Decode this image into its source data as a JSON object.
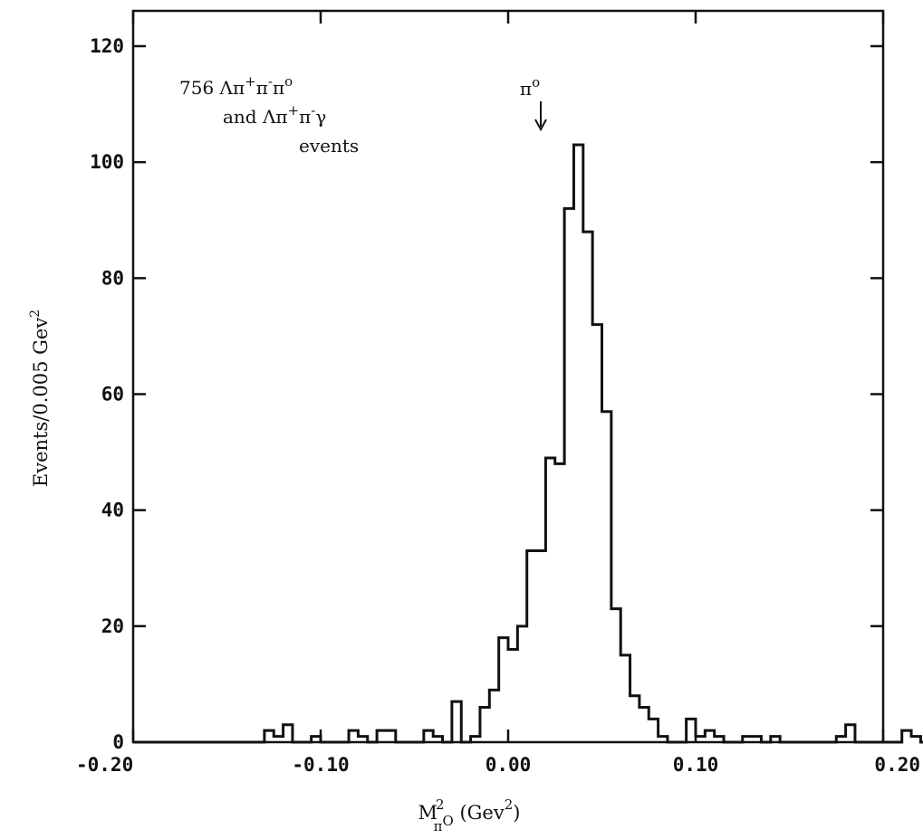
{
  "chart_data": {
    "type": "histogram",
    "xlabel": {
      "base": "M",
      "sup": "2",
      "sub": "π",
      "subsup": "O",
      "rest": " (Gev",
      "rest_sup": "2",
      "close": ")"
    },
    "ylabel": {
      "text": "Events/0.005 Gev",
      "sup": "2"
    },
    "xlim": [
      -0.2,
      0.2
    ],
    "ylim": [
      0,
      125
    ],
    "bin_width": 0.005,
    "x_ticks": [
      -0.2,
      -0.1,
      0.0,
      0.1,
      0.2
    ],
    "x_tick_labels": [
      "-0.20",
      "-0.10",
      "0.00",
      "0.10",
      "0.20"
    ],
    "y_ticks": [
      0,
      20,
      40,
      60,
      80,
      100,
      120
    ],
    "y_tick_labels": [
      "0",
      "20",
      "40",
      "60",
      "80",
      "100",
      "120"
    ],
    "bin_edges_start": -0.2,
    "counts": [
      0,
      0,
      0,
      0,
      0,
      0,
      0,
      0,
      0,
      0,
      0,
      0,
      0,
      0,
      2,
      1,
      3,
      0,
      0,
      1,
      0,
      0,
      0,
      2,
      1,
      0,
      2,
      2,
      0,
      0,
      0,
      2,
      1,
      0,
      7,
      0,
      1,
      6,
      9,
      18,
      16,
      20,
      33,
      33,
      49,
      48,
      92,
      103,
      88,
      72,
      57,
      23,
      15,
      8,
      6,
      4,
      1,
      0,
      0,
      4,
      1,
      2,
      1,
      0,
      0,
      1,
      1,
      0,
      1,
      0,
      0,
      0,
      0,
      0,
      0,
      1,
      3,
      0,
      0,
      0,
      0,
      0,
      2,
      1,
      0,
      0,
      0,
      0,
      0,
      0
    ],
    "annotation": {
      "line1": {
        "n": "756",
        "expr": "Λπ",
        "s1": "+",
        "p2": "π",
        "s2": "-",
        "p3": "π",
        "s3": "o"
      },
      "line2": {
        "pre": "and ",
        "expr": "Λπ",
        "s1": "+",
        "p2": "π",
        "s2": "-",
        "p3": "γ"
      },
      "line3": "events"
    },
    "peak_label": {
      "text": "π",
      "sup": "o",
      "x": 0.02
    }
  }
}
